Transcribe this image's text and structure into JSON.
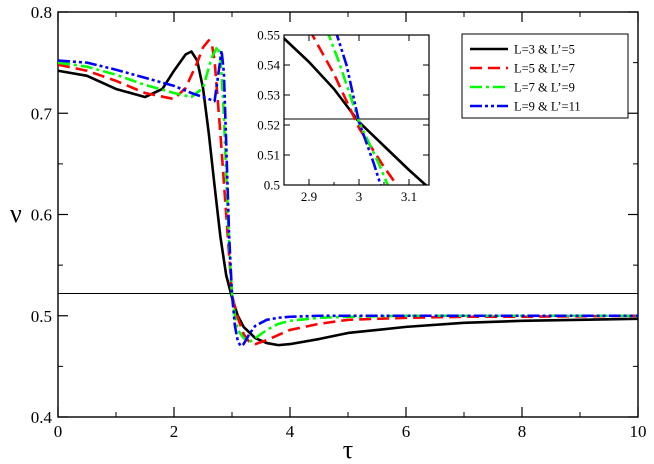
{
  "chart_data": [
    {
      "type": "line",
      "xlabel": "τ",
      "ylabel": "ν",
      "xlim": [
        0,
        10
      ],
      "ylim": [
        0.4,
        0.8
      ],
      "x_ticks": [
        "0",
        "2",
        "4",
        "6",
        "8",
        "10"
      ],
      "y_ticks": [
        "0.4",
        "0.5",
        "0.6",
        "0.7",
        "0.8"
      ],
      "reference_line": {
        "y": 0.522
      },
      "legend_position": "inset top-right",
      "series": [
        {
          "name": "L=3 & L’=5",
          "color": "#000000",
          "dash": "solid",
          "x": [
            0,
            0.5,
            1.0,
            1.5,
            1.8,
            2.0,
            2.2,
            2.3,
            2.4,
            2.5,
            2.6,
            2.7,
            2.8,
            2.9,
            3.0,
            3.1,
            3.2,
            3.4,
            3.6,
            3.8,
            4.0,
            4.5,
            5.0,
            6.0,
            7.0,
            8.0,
            9.0,
            10.0
          ],
          "y": [
            0.742,
            0.737,
            0.724,
            0.716,
            0.724,
            0.742,
            0.758,
            0.761,
            0.752,
            0.725,
            0.68,
            0.628,
            0.578,
            0.54,
            0.518,
            0.5,
            0.489,
            0.478,
            0.473,
            0.471,
            0.472,
            0.477,
            0.483,
            0.489,
            0.493,
            0.495,
            0.496,
            0.497
          ]
        },
        {
          "name": "L=5 & L’=7",
          "color": "#ff0000",
          "dash": "dashed",
          "x": [
            0,
            0.5,
            1.0,
            1.5,
            2.0,
            2.2,
            2.4,
            2.5,
            2.6,
            2.65,
            2.7,
            2.8,
            2.9,
            3.0,
            3.1,
            3.2,
            3.3,
            3.4,
            3.6,
            3.8,
            4.0,
            4.5,
            5.0,
            6.0,
            7.0,
            8.0,
            10.0
          ],
          "y": [
            0.748,
            0.742,
            0.732,
            0.72,
            0.714,
            0.725,
            0.75,
            0.765,
            0.772,
            0.769,
            0.752,
            0.68,
            0.6,
            0.52,
            0.498,
            0.482,
            0.474,
            0.472,
            0.476,
            0.481,
            0.486,
            0.492,
            0.496,
            0.498,
            0.499,
            0.499,
            0.5
          ]
        },
        {
          "name": "L=7 & L’=9",
          "color": "#00ff00",
          "dash": "dash-dot",
          "x": [
            0,
            0.5,
            1.0,
            1.5,
            2.0,
            2.3,
            2.5,
            2.65,
            2.75,
            2.8,
            2.85,
            2.9,
            2.95,
            3.0,
            3.05,
            3.1,
            3.2,
            3.3,
            3.4,
            3.6,
            3.8,
            4.0,
            4.5,
            5.0,
            6.0,
            8.0,
            10.0
          ],
          "y": [
            0.75,
            0.746,
            0.738,
            0.728,
            0.72,
            0.716,
            0.725,
            0.755,
            0.766,
            0.755,
            0.71,
            0.64,
            0.57,
            0.521,
            0.5,
            0.486,
            0.478,
            0.474,
            0.478,
            0.486,
            0.492,
            0.495,
            0.498,
            0.499,
            0.5,
            0.5,
            0.5
          ]
        },
        {
          "name": "L=9 & L’=11",
          "color": "#0000ff",
          "dash": "dash-dot-dot",
          "x": [
            0,
            0.5,
            1.0,
            1.5,
            2.0,
            2.3,
            2.5,
            2.7,
            2.78,
            2.82,
            2.86,
            2.9,
            2.95,
            3.0,
            3.05,
            3.1,
            3.15,
            3.2,
            3.3,
            3.4,
            3.6,
            3.8,
            4.0,
            4.5,
            5.0,
            6.0,
            8.0,
            10.0
          ],
          "y": [
            0.752,
            0.75,
            0.743,
            0.735,
            0.727,
            0.72,
            0.716,
            0.712,
            0.745,
            0.762,
            0.74,
            0.67,
            0.58,
            0.521,
            0.49,
            0.475,
            0.47,
            0.472,
            0.482,
            0.49,
            0.496,
            0.498,
            0.499,
            0.5,
            0.5,
            0.5,
            0.5,
            0.5
          ]
        }
      ]
    },
    {
      "type": "line",
      "role": "inset",
      "xlim": [
        2.85,
        3.14
      ],
      "ylim": [
        0.5,
        0.55
      ],
      "x_ticks": [
        "2.9",
        "3",
        "3.1"
      ],
      "y_ticks": [
        "0.5",
        "0.51",
        "0.52",
        "0.53",
        "0.54",
        "0.55"
      ],
      "reference_line": {
        "y": 0.522
      },
      "series": [
        {
          "name": "L=3 & L’=5",
          "x": [
            2.83,
            2.9,
            2.95,
            3.0,
            3.05,
            3.1,
            3.14
          ],
          "y": [
            0.552,
            0.541,
            0.532,
            0.521,
            0.513,
            0.505,
            0.499
          ]
        },
        {
          "name": "L=5 & L’=7",
          "x": [
            2.9,
            2.95,
            3.0,
            3.05,
            3.08
          ],
          "y": [
            0.552,
            0.537,
            0.519,
            0.506,
            0.499
          ]
        },
        {
          "name": "L=7 & L’=9",
          "x": [
            2.935,
            2.96,
            3.0,
            3.04,
            3.06
          ],
          "y": [
            0.552,
            0.541,
            0.521,
            0.507,
            0.499
          ]
        },
        {
          "name": "L=9 & L’=11",
          "x": [
            2.952,
            2.975,
            3.0,
            3.03,
            3.045
          ],
          "y": [
            0.552,
            0.54,
            0.521,
            0.507,
            0.499
          ]
        }
      ]
    }
  ]
}
